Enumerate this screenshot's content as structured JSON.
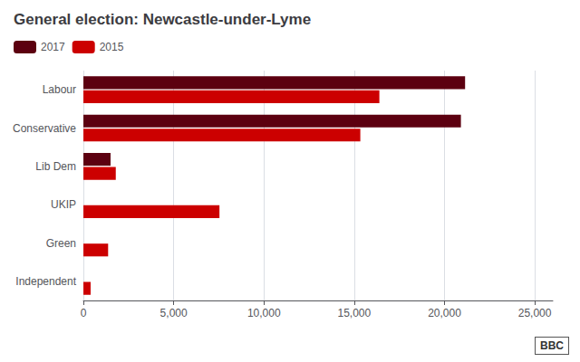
{
  "chart_data": {
    "type": "bar",
    "orientation": "horizontal",
    "title": "General election: Newcastle-under-Lyme",
    "categories": [
      "Labour",
      "Conservative",
      "Lib Dem",
      "UKIP",
      "Green",
      "Independent"
    ],
    "series": [
      {
        "name": "2017",
        "color": "#5c0010",
        "values": [
          21141,
          20910,
          1504,
          0,
          0,
          0
        ]
      },
      {
        "name": "2015",
        "color": "#cc0000",
        "values": [
          16393,
          15338,
          1793,
          7536,
          1369,
          400
        ]
      }
    ],
    "xlim": [
      0,
      26000
    ],
    "xticks": [
      0,
      {
        "value": 5000,
        "label": "5,000"
      },
      {
        "value": 10000,
        "label": "10,000"
      },
      {
        "value": 15000,
        "label": "15,000"
      },
      {
        "value": 20000,
        "label": "20,000"
      },
      {
        "value": 25000,
        "label": "25,000"
      }
    ],
    "grid": true,
    "legend": "upper left",
    "annotations": [
      "BBC"
    ]
  }
}
